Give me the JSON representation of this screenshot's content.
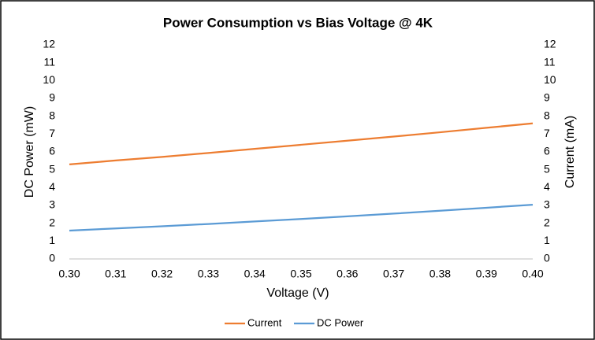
{
  "chart_data": {
    "type": "line",
    "title": "Power Consumption vs Bias Voltage @ 4K",
    "x_label": "Voltage (V)",
    "y_label": "DC Power (mW)",
    "y2_label": "Current (mA)",
    "x": [
      0.3,
      0.31,
      0.32,
      0.33,
      0.34,
      0.35,
      0.36,
      0.37,
      0.38,
      0.39,
      0.4
    ],
    "series": [
      {
        "name": "Current",
        "color": "#ed7d31",
        "axis": "y2",
        "values": [
          5.3,
          5.52,
          5.72,
          5.94,
          6.17,
          6.4,
          6.63,
          6.86,
          7.1,
          7.35,
          7.6
        ]
      },
      {
        "name": "DC Power",
        "color": "#5b9bd5",
        "values": [
          1.59,
          1.71,
          1.83,
          1.96,
          2.1,
          2.24,
          2.39,
          2.54,
          2.7,
          2.87,
          3.04
        ]
      }
    ],
    "xlim": [
      0.3,
      0.4
    ],
    "xticks": [
      {
        "value": 0.3,
        "label": "0.30"
      },
      0.31,
      0.32,
      0.33,
      0.34,
      0.35,
      0.36,
      0.37,
      0.38,
      0.39,
      {
        "value": 0.4,
        "label": "0.40"
      }
    ],
    "ylim": [
      0,
      12
    ],
    "yticks": [
      0,
      1,
      2,
      3,
      4,
      5,
      6,
      7,
      8,
      9,
      10,
      11,
      12
    ],
    "y2lim": [
      0,
      12
    ],
    "y2ticks": [
      0,
      1,
      2,
      3,
      4,
      5,
      6,
      7,
      8,
      9,
      10,
      11,
      12
    ],
    "grid": false,
    "legend": "bottom"
  }
}
